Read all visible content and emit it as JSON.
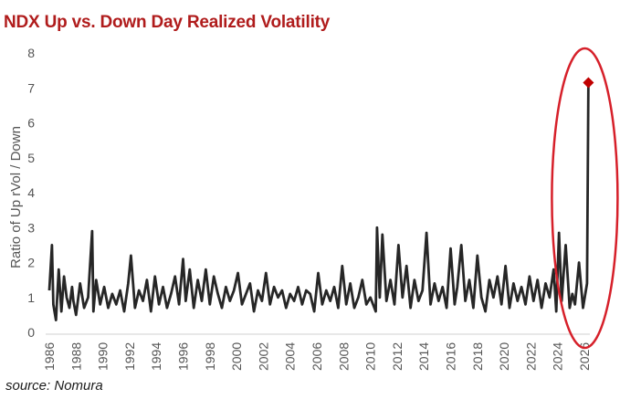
{
  "chart_data": {
    "type": "line",
    "title": "NDX Up vs. Down Day Realized Volatility",
    "ylabel": "Ratio of Up rVol / Down",
    "xlabel": "",
    "ylim": [
      0,
      8
    ],
    "yticks": [
      0,
      1,
      2,
      3,
      4,
      5,
      6,
      7,
      8
    ],
    "xlim": [
      1986,
      2026
    ],
    "xticks": [
      "1986",
      "1988",
      "1990",
      "1992",
      "1994",
      "1996",
      "1998",
      "2000",
      "2002",
      "2004",
      "2006",
      "2008",
      "2010",
      "2012",
      "2014",
      "2016",
      "2018",
      "2020",
      "2022",
      "2024",
      "2026"
    ],
    "grid": false,
    "legend": "none",
    "line_color": "#262626",
    "highlight": {
      "shape": "ellipse",
      "color": "#d6202a",
      "marker": "diamond",
      "marker_color": "#c00000"
    },
    "series": [
      {
        "x": [
          1986.0,
          1986.2,
          1986.3,
          1986.5,
          1986.7,
          1986.9,
          1987.1,
          1987.3,
          1987.5,
          1987.7,
          1987.8,
          1988.0,
          1988.3,
          1988.6,
          1988.9,
          1989.2,
          1989.3,
          1989.5,
          1989.8,
          1990.1,
          1990.4,
          1990.7,
          1991.0,
          1991.3,
          1991.6,
          1991.9,
          1992.1,
          1992.4,
          1992.7,
          1993.0,
          1993.3,
          1993.6,
          1993.9,
          1994.2,
          1994.5,
          1994.8,
          1995.1,
          1995.4,
          1995.7,
          1996.0,
          1996.2,
          1996.5,
          1996.8,
          1997.1,
          1997.4,
          1997.7,
          1998.0,
          1998.3,
          1998.6,
          1998.9,
          1999.2,
          1999.5,
          1999.8,
          2000.1,
          2000.4,
          2000.7,
          2001.0,
          2001.3,
          2001.6,
          2001.9,
          2002.2,
          2002.5,
          2002.8,
          2003.1,
          2003.4,
          2003.7,
          2004.0,
          2004.3,
          2004.6,
          2004.9,
          2005.2,
          2005.5,
          2005.8,
          2006.1,
          2006.4,
          2006.7,
          2007.0,
          2007.3,
          2007.6,
          2007.9,
          2008.2,
          2008.5,
          2008.8,
          2009.1,
          2009.4,
          2009.7,
          2010.0,
          2010.4,
          2010.5,
          2010.7,
          2010.9,
          2011.2,
          2011.5,
          2011.8,
          2012.1,
          2012.4,
          2012.7,
          2013.0,
          2013.3,
          2013.6,
          2013.9,
          2014.2,
          2014.5,
          2014.8,
          2015.1,
          2015.4,
          2015.7,
          2016.0,
          2016.3,
          2016.5,
          2016.8,
          2017.1,
          2017.4,
          2017.7,
          2018.0,
          2018.3,
          2018.6,
          2018.9,
          2019.2,
          2019.5,
          2019.8,
          2020.1,
          2020.4,
          2020.7,
          2021.0,
          2021.3,
          2021.6,
          2021.9,
          2022.2,
          2022.5,
          2022.8,
          2023.1,
          2023.4,
          2023.7,
          2023.9,
          2024.1,
          2024.3,
          2024.6,
          2024.9,
          2025.1,
          2025.3,
          2025.6,
          2025.9,
          2026.2,
          2026.3
        ],
        "y": [
          1.2,
          2.5,
          0.8,
          0.35,
          1.8,
          0.6,
          1.6,
          1.0,
          0.7,
          1.3,
          0.9,
          0.5,
          1.4,
          0.7,
          1.0,
          2.9,
          0.6,
          1.5,
          0.8,
          1.3,
          0.7,
          1.1,
          0.8,
          1.2,
          0.6,
          1.4,
          2.2,
          0.7,
          1.2,
          0.9,
          1.5,
          0.6,
          1.6,
          0.8,
          1.3,
          0.7,
          1.1,
          1.6,
          0.8,
          2.1,
          0.9,
          1.8,
          0.7,
          1.5,
          0.9,
          1.8,
          0.8,
          1.6,
          1.1,
          0.7,
          1.3,
          0.9,
          1.2,
          1.7,
          0.8,
          1.1,
          1.4,
          0.6,
          1.2,
          0.9,
          1.7,
          0.8,
          1.3,
          1.0,
          1.2,
          0.7,
          1.1,
          0.9,
          1.3,
          0.8,
          1.2,
          1.1,
          0.6,
          1.7,
          0.8,
          1.2,
          0.9,
          1.3,
          0.7,
          1.9,
          0.8,
          1.4,
          0.7,
          1.0,
          1.5,
          0.8,
          1.0,
          0.6,
          3.0,
          1.0,
          2.8,
          0.9,
          1.5,
          0.8,
          2.5,
          1.0,
          1.9,
          0.7,
          1.5,
          0.9,
          1.2,
          2.85,
          0.8,
          1.4,
          0.9,
          1.3,
          0.7,
          2.4,
          0.8,
          1.3,
          2.5,
          0.9,
          1.5,
          0.7,
          2.2,
          1.0,
          0.6,
          1.5,
          1.0,
          1.6,
          0.8,
          1.9,
          0.7,
          1.4,
          0.9,
          1.3,
          0.8,
          1.6,
          0.9,
          1.5,
          0.7,
          1.4,
          1.0,
          1.8,
          0.6,
          2.85,
          0.9,
          2.5,
          0.7,
          1.1,
          0.8,
          2.0,
          0.7,
          1.4,
          7.15
        ]
      }
    ],
    "source": "source: Nomura"
  }
}
